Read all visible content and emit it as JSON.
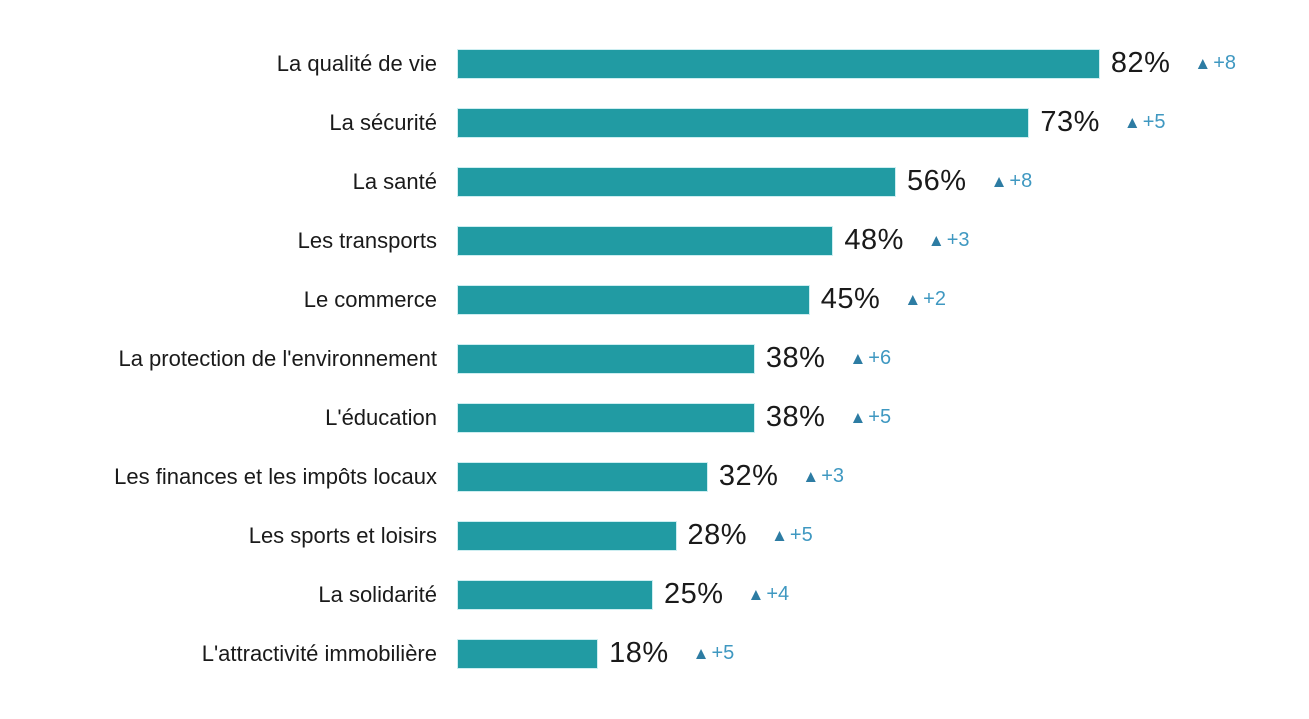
{
  "chart_data": {
    "type": "bar",
    "orientation": "horizontal",
    "title": "",
    "xlabel": "",
    "ylabel": "",
    "xlim": [
      0,
      100
    ],
    "grid": false,
    "legend": false,
    "value_format": "percent",
    "categories": [
      "La qualité de vie",
      "La sécurité",
      "La santé",
      "Les transports",
      "Le commerce",
      "La protection de l'environnement",
      "L'éducation",
      "Les finances et les impôts locaux",
      "Les sports et loisirs",
      "La solidarité",
      "L'attractivité immobilière"
    ],
    "values": [
      82,
      73,
      56,
      48,
      45,
      38,
      38,
      32,
      28,
      25,
      18
    ],
    "deltas": [
      8,
      5,
      8,
      3,
      2,
      6,
      5,
      3,
      5,
      4,
      5
    ],
    "rows": [
      {
        "label": "La qualité de vie",
        "value": 82,
        "value_label": "82%",
        "delta_label": "+8"
      },
      {
        "label": "La sécurité",
        "value": 73,
        "value_label": "73%",
        "delta_label": "+5"
      },
      {
        "label": "La santé",
        "value": 56,
        "value_label": "56%",
        "delta_label": "+8"
      },
      {
        "label": "Les transports",
        "value": 48,
        "value_label": "48%",
        "delta_label": "+3"
      },
      {
        "label": "Le commerce",
        "value": 45,
        "value_label": "45%",
        "delta_label": "+2"
      },
      {
        "label": "La protection de l'environnement",
        "value": 38,
        "value_label": "38%",
        "delta_label": "+6"
      },
      {
        "label": "L'éducation",
        "value": 38,
        "value_label": "38%",
        "delta_label": "+5"
      },
      {
        "label": "Les finances et les impôts locaux",
        "value": 32,
        "value_label": "32%",
        "delta_label": "+3"
      },
      {
        "label": "Les sports et loisirs",
        "value": 28,
        "value_label": "28%",
        "delta_label": "+5"
      },
      {
        "label": "La solidarité",
        "value": 25,
        "value_label": "25%",
        "delta_label": "+4"
      },
      {
        "label": "L'attractivité immobilière",
        "value": 18,
        "value_label": "18%",
        "delta_label": "+5"
      }
    ],
    "colors": {
      "bar": "#219ba3",
      "triangle": "#2d7ca3",
      "delta_text": "#3f98c1",
      "value_text": "#1a1a1a",
      "label_text": "#1a1a1a",
      "background": "#ffffff"
    }
  },
  "icons": {
    "triangle_up": "▲"
  }
}
